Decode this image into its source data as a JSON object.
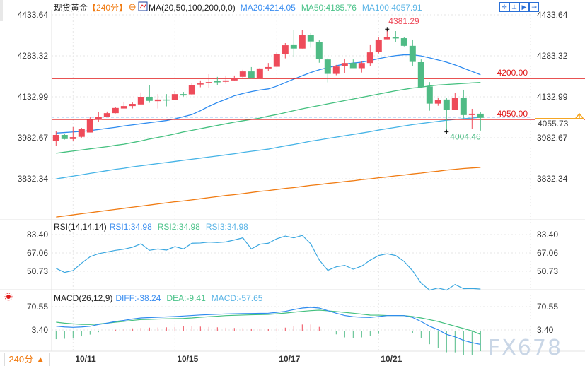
{
  "header": {
    "instrument": "现货黄金",
    "period_tag": "【240分】",
    "ma_label": "MA(20,50,100,200,0,0)",
    "ma20": "MA20:4214.05",
    "ma50": "MA50:4185.76",
    "ma100": "MA100:4057.91",
    "toolbar_icons": [
      "crosshair-icon",
      "zoom-range-icon",
      "play-icon",
      "exit-icon"
    ]
  },
  "colors": {
    "up": "#ee4b5a",
    "down": "#4fbb85",
    "ma20": "#2e8bef",
    "ma50": "#44c07f",
    "ma100": "#45b3e6",
    "ma200": "#f07b12",
    "level": "#e01818",
    "accent": "#f07b12"
  },
  "main_axis": {
    "ticks": [
      "4433.64",
      "4283.32",
      "4132.99",
      "3982.67",
      "3832.34"
    ]
  },
  "levels": [
    {
      "label": "4200.00",
      "value": 4200.0
    },
    {
      "label": "4050.00",
      "value": 4050.0
    }
  ],
  "last_price": {
    "label": "4055.73",
    "value": 4055.73
  },
  "annotations": {
    "high": {
      "label": "4381.29",
      "value": 4381.29,
      "index": 39
    },
    "low": {
      "label": "4004.46",
      "value": 4004.46,
      "index": 46
    }
  },
  "rsi": {
    "title": "RSI(14,14,14)",
    "rsi1": "RSI1:34.98",
    "rsi2": "RSI2:34.98",
    "rsi3": "RSI3:34.98",
    "ticks": [
      "83.40",
      "67.06",
      "50.73"
    ]
  },
  "macd": {
    "title": "MACD(26,12,9)",
    "diff_label": "DIFF:-38.24",
    "dea_label": "DEA:-9.41",
    "macd_label": "MACD:-57.65",
    "ticks": [
      "70.55",
      "3.40"
    ]
  },
  "dates": [
    {
      "label": "10/11",
      "index": 2
    },
    {
      "label": "10/15",
      "index": 14
    },
    {
      "label": "10/17",
      "index": 26
    },
    {
      "label": "10/21",
      "index": 38
    }
  ],
  "period_button": "240分 ▲",
  "watermark": "FX678",
  "chart_data": {
    "type": "candlestick",
    "ylim": [
      3682,
      4445
    ],
    "ohlc": [
      [
        3971,
        4006,
        3952,
        3993
      ],
      [
        3993,
        3998,
        3976,
        3978
      ],
      [
        3978,
        4022,
        3971,
        3985
      ],
      [
        3986,
        4019,
        3983,
        4014
      ],
      [
        4002,
        4058,
        4002,
        4049
      ],
      [
        4049,
        4076,
        4041,
        4060
      ],
      [
        4060,
        4079,
        4058,
        4073
      ],
      [
        4073,
        4094,
        4072,
        4092
      ],
      [
        4090,
        4115,
        4090,
        4099
      ],
      [
        4099,
        4112,
        4090,
        4107
      ],
      [
        4105,
        4149,
        4105,
        4133
      ],
      [
        4133,
        4177,
        4111,
        4118
      ],
      [
        4117,
        4143,
        4090,
        4123
      ],
      [
        4123,
        4143,
        4098,
        4121
      ],
      [
        4121,
        4154,
        4121,
        4143
      ],
      [
        4143,
        4151,
        4134,
        4138
      ],
      [
        4142,
        4184,
        4139,
        4177
      ],
      [
        4178,
        4193,
        4168,
        4182
      ],
      [
        4183,
        4216,
        4165,
        4187
      ],
      [
        4190,
        4206,
        4175,
        4186
      ],
      [
        4188,
        4211,
        4181,
        4193
      ],
      [
        4193,
        4211,
        4193,
        4203
      ],
      [
        4206,
        4232,
        4201,
        4226
      ],
      [
        4226,
        4242,
        4200,
        4200
      ],
      [
        4200,
        4239,
        4200,
        4237
      ],
      [
        4237,
        4257,
        4227,
        4242
      ],
      [
        4243,
        4296,
        4243,
        4291
      ],
      [
        4289,
        4330,
        4274,
        4322
      ],
      [
        4325,
        4379,
        4279,
        4310
      ],
      [
        4310,
        4377,
        4310,
        4361
      ],
      [
        4361,
        4369,
        4313,
        4336
      ],
      [
        4335,
        4340,
        4258,
        4271
      ],
      [
        4270,
        4274,
        4186,
        4217
      ],
      [
        4217,
        4250,
        4212,
        4244
      ],
      [
        4245,
        4273,
        4219,
        4257
      ],
      [
        4257,
        4270,
        4238,
        4238
      ],
      [
        4238,
        4263,
        4222,
        4257
      ],
      [
        4257,
        4325,
        4245,
        4296
      ],
      [
        4297,
        4352,
        4292,
        4343
      ],
      [
        4344,
        4381.29,
        4344,
        4353
      ],
      [
        4351,
        4374,
        4333,
        4347
      ],
      [
        4348,
        4352,
        4318,
        4320
      ],
      [
        4320,
        4343,
        4245,
        4261
      ],
      [
        4260,
        4270,
        4168,
        4168
      ],
      [
        4171,
        4187,
        4082,
        4108
      ],
      [
        4108,
        4130,
        4100,
        4120
      ],
      [
        4123,
        4130,
        4004.46,
        4085
      ],
      [
        4085,
        4146,
        4085,
        4130
      ],
      [
        4130,
        4159,
        4054,
        4066
      ],
      [
        4066,
        4089,
        4015,
        4071
      ],
      [
        4071,
        4076,
        4009,
        4055.73
      ]
    ],
    "ma20": [
      4000,
      4002,
      4004,
      4006,
      4009,
      4013,
      4017,
      4021,
      4026,
      4030,
      4034,
      4038,
      4042,
      4046,
      4052,
      4060,
      4068,
      4082,
      4098,
      4112,
      4124,
      4137,
      4145,
      4152,
      4158,
      4162,
      4172,
      4185,
      4198,
      4210,
      4222,
      4232,
      4240,
      4247,
      4253,
      4257,
      4260,
      4266,
      4273,
      4279,
      4284,
      4287,
      4287,
      4283,
      4276,
      4268,
      4260,
      4250,
      4238,
      4226,
      4214.05
    ],
    "ma50": [
      3926,
      3930,
      3934,
      3938,
      3942,
      3946,
      3950,
      3955,
      3959,
      3965,
      3971,
      3978,
      3984,
      3990,
      3997,
      4004,
      4010,
      4016,
      4022,
      4028,
      4034,
      4040,
      4045,
      4050,
      4055,
      4062,
      4068,
      4075,
      4082,
      4089,
      4095,
      4101,
      4107,
      4113,
      4119,
      4125,
      4131,
      4137,
      4143,
      4149,
      4155,
      4160,
      4165,
      4168,
      4173,
      4176,
      4178,
      4180,
      4182,
      4184,
      4185.76
    ],
    "ma100": [
      3832,
      3837,
      3842,
      3847,
      3852,
      3857,
      3862,
      3867,
      3871,
      3876,
      3880,
      3884,
      3888,
      3892,
      3896,
      3900,
      3904,
      3908,
      3912,
      3916,
      3920,
      3924,
      3929,
      3933,
      3937,
      3941,
      3947,
      3953,
      3958,
      3964,
      3970,
      3975,
      3980,
      3985,
      3990,
      3995,
      4000,
      4005,
      4011,
      4016,
      4021,
      4026,
      4031,
      4035,
      4039,
      4043,
      4047,
      4050,
      4053,
      4055,
      4057.91
    ],
    "ma200": [
      3692,
      3696,
      3700,
      3704,
      3708,
      3712,
      3716,
      3720,
      3724,
      3728,
      3732,
      3736,
      3740,
      3744,
      3748,
      3751,
      3755,
      3759,
      3763,
      3767,
      3771,
      3774,
      3778,
      3782,
      3786,
      3789,
      3793,
      3797,
      3800,
      3804,
      3808,
      3811,
      3815,
      3818,
      3822,
      3825,
      3829,
      3832,
      3836,
      3839,
      3843,
      3846,
      3850,
      3853,
      3857,
      3860,
      3864,
      3867,
      3870,
      3872,
      3874
    ],
    "rsi": [
      53.3,
      49.7,
      51.4,
      58,
      63.7,
      66.4,
      67.9,
      69.4,
      70.4,
      72.1,
      75.2,
      69.4,
      70.6,
      69.6,
      72.7,
      70.6,
      75.7,
      75.9,
      76.7,
      76.3,
      76.9,
      78.6,
      80.5,
      70.6,
      74.8,
      75.7,
      79.7,
      82.1,
      80.5,
      82.7,
      75.2,
      60.8,
      51.6,
      54.7,
      56,
      52.6,
      55.3,
      60.6,
      64.8,
      66.3,
      64.8,
      59.5,
      51.2,
      40.3,
      34,
      35.9,
      34,
      39,
      35.3,
      35.5,
      34.98
    ],
    "diff": [
      14.2,
      12,
      10.9,
      12,
      14,
      19,
      23,
      27.8,
      31,
      35,
      38,
      39,
      40,
      41,
      42,
      43.5,
      45,
      46.5,
      47.5,
      48.5,
      49.6,
      50,
      50.5,
      50.8,
      51.2,
      51.6,
      54,
      57,
      62,
      66.5,
      68.5,
      66.5,
      59,
      51.6,
      45,
      41.5,
      40,
      39.4,
      42,
      44.7,
      45,
      44.7,
      39.4,
      27.8,
      14.2,
      4,
      -9.4,
      -16.3,
      -26.5,
      -33.2,
      -38.24
    ],
    "dea": [
      25.8,
      23,
      21,
      19.5,
      19,
      20.5,
      23,
      25.8,
      28,
      31,
      33.3,
      34,
      34.8,
      35.5,
      36,
      36.6,
      38,
      40,
      41.5,
      43,
      44.7,
      45.5,
      46.3,
      47,
      47.6,
      48.2,
      50,
      52,
      54.5,
      57,
      59,
      60.4,
      58.5,
      56.3,
      54,
      51.6,
      49,
      46.1,
      46,
      45,
      45,
      44.7,
      42,
      38,
      33,
      27.8,
      21,
      14.2,
      7.5,
      0.7,
      -9.41
    ],
    "macd": [
      -23.2,
      -22,
      -20.2,
      -15,
      -10,
      -3,
      0,
      4,
      6,
      8,
      9.4,
      10,
      10.4,
      11,
      12,
      13.8,
      14,
      13,
      12,
      11,
      9.8,
      9,
      8.4,
      7.6,
      7.2,
      6.8,
      8,
      10,
      15,
      19,
      19,
      12.2,
      1,
      -9.4,
      -18,
      -20.2,
      -18,
      -13.4,
      -8,
      -0.6,
      0.2,
      0.1,
      -5.2,
      -20.4,
      -37.6,
      -47.6,
      -60.8,
      -61,
      -68,
      -67.8,
      -57.65
    ]
  }
}
